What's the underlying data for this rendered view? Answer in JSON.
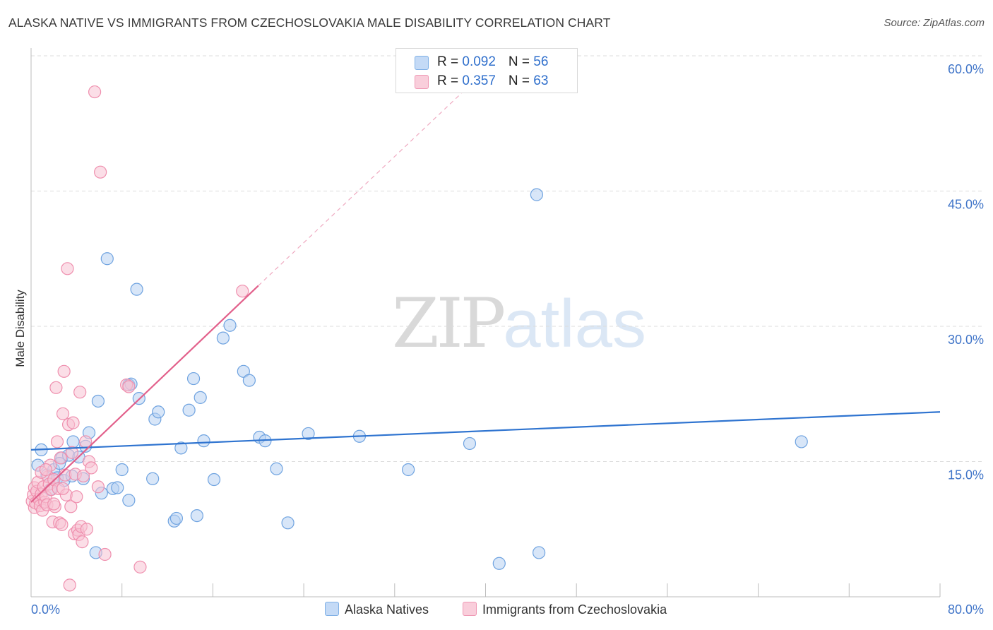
{
  "header": {
    "title": "ALASKA NATIVE VS IMMIGRANTS FROM CZECHOSLOVAKIA MALE DISABILITY CORRELATION CHART",
    "source": "Source: ZipAtlas.com"
  },
  "watermark": {
    "part1": "ZIP",
    "part2": "atlas"
  },
  "colors": {
    "blue": "#6fa3e0",
    "blue_fill": "#b8d2f3",
    "blue_line": "#2f74d0",
    "pink": "#ef8fae",
    "pink_fill": "#f7c3d3",
    "pink_line": "#e2608b",
    "tick_label": "#3f74c8",
    "grid": "#dcdcdc"
  },
  "legend_top": {
    "rows": [
      {
        "r_label": "R = ",
        "r_value": "0.092",
        "n_label": "N = ",
        "n_value": "56"
      },
      {
        "r_label": "R = ",
        "r_value": "0.357",
        "n_label": "N = ",
        "n_value": "63"
      }
    ]
  },
  "chart_data": {
    "type": "scatter",
    "title": "ALASKA NATIVE VS IMMIGRANTS FROM CZECHOSLOVAKIA MALE DISABILITY CORRELATION CHART",
    "xlabel": "",
    "ylabel": "Male Disability",
    "xlim": [
      0,
      80
    ],
    "ylim": [
      0,
      60
    ],
    "x_tick_labels": [
      "0.0%",
      "80.0%"
    ],
    "y_ticks": [
      15,
      30,
      45,
      60
    ],
    "y_tick_labels": [
      "15.0%",
      "30.0%",
      "45.0%",
      "60.0%"
    ],
    "grid": true,
    "legend_position": "bottom",
    "series": [
      {
        "name": "Alaska Natives",
        "color": "#6fa3e0",
        "R": 0.092,
        "N": 56,
        "trend": {
          "x0": 0,
          "y0": 16.3,
          "x1": 80,
          "y1": 20.5
        },
        "points": [
          [
            0.6,
            14.6
          ],
          [
            0.9,
            16.3
          ],
          [
            1.4,
            13.5
          ],
          [
            1.7,
            11.9
          ],
          [
            2.0,
            14.1
          ],
          [
            2.3,
            13.2
          ],
          [
            2.7,
            15.4
          ],
          [
            2.9,
            12.9
          ],
          [
            3.3,
            15.7
          ],
          [
            3.6,
            13.4
          ],
          [
            3.7,
            17.2
          ],
          [
            4.2,
            15.5
          ],
          [
            4.6,
            13.1
          ],
          [
            4.8,
            16.7
          ],
          [
            5.1,
            18.2
          ],
          [
            5.7,
            4.9
          ],
          [
            5.9,
            21.7
          ],
          [
            6.2,
            11.5
          ],
          [
            6.7,
            37.5
          ],
          [
            7.2,
            12.0
          ],
          [
            7.6,
            12.1
          ],
          [
            8.0,
            14.1
          ],
          [
            8.6,
            10.7
          ],
          [
            8.6,
            23.5
          ],
          [
            8.8,
            23.6
          ],
          [
            9.3,
            34.1
          ],
          [
            9.5,
            22.0
          ],
          [
            10.7,
            13.1
          ],
          [
            10.9,
            19.7
          ],
          [
            11.2,
            20.5
          ],
          [
            12.6,
            8.4
          ],
          [
            12.8,
            8.7
          ],
          [
            13.2,
            16.5
          ],
          [
            13.9,
            20.7
          ],
          [
            14.3,
            24.2
          ],
          [
            14.6,
            9.0
          ],
          [
            14.9,
            22.1
          ],
          [
            15.2,
            17.3
          ],
          [
            16.1,
            13.0
          ],
          [
            16.9,
            28.7
          ],
          [
            17.5,
            30.1
          ],
          [
            18.7,
            25.0
          ],
          [
            19.2,
            24.0
          ],
          [
            20.1,
            17.7
          ],
          [
            20.6,
            17.3
          ],
          [
            21.6,
            14.2
          ],
          [
            22.6,
            8.2
          ],
          [
            24.4,
            18.1
          ],
          [
            28.9,
            17.8
          ],
          [
            33.2,
            14.1
          ],
          [
            38.6,
            17.0
          ],
          [
            41.2,
            3.7
          ],
          [
            44.5,
            44.6
          ],
          [
            44.7,
            4.9
          ],
          [
            67.8,
            17.2
          ],
          [
            2.5,
            14.8
          ]
        ]
      },
      {
        "name": "Immigrants from Czechoslovakia",
        "color": "#ef8fae",
        "R": 0.357,
        "N": 63,
        "trend": {
          "x0": 0,
          "y0": 10.5,
          "x1": 20,
          "y1": 34.5
        },
        "trend_extension": {
          "x0": 20,
          "y0": 34.5,
          "x1": 38,
          "y1": 56
        },
        "points": [
          [
            0.1,
            10.6
          ],
          [
            0.2,
            11.3
          ],
          [
            0.3,
            12.1
          ],
          [
            0.3,
            9.9
          ],
          [
            0.4,
            10.4
          ],
          [
            0.5,
            11.7
          ],
          [
            0.6,
            12.7
          ],
          [
            0.7,
            10.8
          ],
          [
            0.8,
            10.1
          ],
          [
            0.9,
            11.4
          ],
          [
            1.0,
            9.6
          ],
          [
            1.1,
            12.2
          ],
          [
            1.2,
            10.5
          ],
          [
            1.3,
            11.1
          ],
          [
            1.4,
            10.2
          ],
          [
            1.5,
            13.3
          ],
          [
            1.6,
            12.5
          ],
          [
            1.7,
            14.6
          ],
          [
            1.8,
            11.9
          ],
          [
            1.9,
            8.3
          ],
          [
            2.0,
            13.0
          ],
          [
            2.1,
            10.0
          ],
          [
            2.2,
            23.2
          ],
          [
            2.3,
            17.2
          ],
          [
            2.4,
            12.0
          ],
          [
            2.5,
            8.2
          ],
          [
            2.6,
            15.4
          ],
          [
            2.7,
            8.0
          ],
          [
            2.8,
            20.3
          ],
          [
            2.9,
            25.0
          ],
          [
            3.0,
            13.5
          ],
          [
            3.1,
            11.3
          ],
          [
            3.2,
            36.4
          ],
          [
            3.3,
            19.1
          ],
          [
            3.4,
            1.3
          ],
          [
            3.5,
            10.0
          ],
          [
            3.6,
            16.0
          ],
          [
            3.7,
            19.3
          ],
          [
            3.8,
            7.0
          ],
          [
            3.9,
            13.6
          ],
          [
            4.0,
            11.1
          ],
          [
            4.1,
            7.4
          ],
          [
            4.2,
            6.9
          ],
          [
            4.3,
            22.7
          ],
          [
            4.4,
            7.8
          ],
          [
            4.5,
            6.1
          ],
          [
            4.6,
            13.4
          ],
          [
            4.8,
            17.2
          ],
          [
            4.9,
            7.5
          ],
          [
            5.1,
            15.0
          ],
          [
            5.3,
            14.3
          ],
          [
            5.6,
            56.0
          ],
          [
            5.9,
            12.2
          ],
          [
            6.1,
            47.1
          ],
          [
            6.5,
            4.7
          ],
          [
            8.4,
            23.5
          ],
          [
            8.6,
            23.3
          ],
          [
            9.6,
            3.3
          ],
          [
            18.6,
            33.9
          ],
          [
            0.9,
            13.8
          ],
          [
            1.3,
            14.1
          ],
          [
            2.0,
            10.3
          ],
          [
            2.8,
            12.0
          ]
        ]
      }
    ]
  }
}
